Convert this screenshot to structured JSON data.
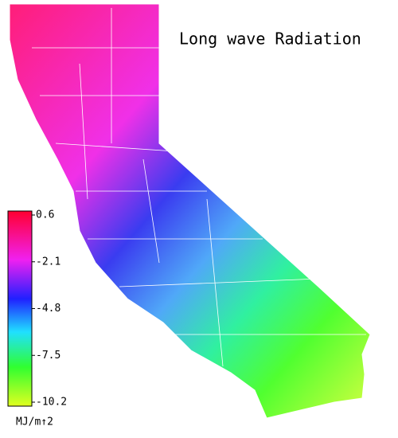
{
  "title": "Long wave Radiation",
  "colorbar": {
    "ticks": [
      0.6,
      -2.1,
      -4.8,
      -7.5,
      -10.2
    ],
    "lim": [
      -10.2,
      0.6
    ],
    "unit_label": "MJ/m↑2"
  }
}
